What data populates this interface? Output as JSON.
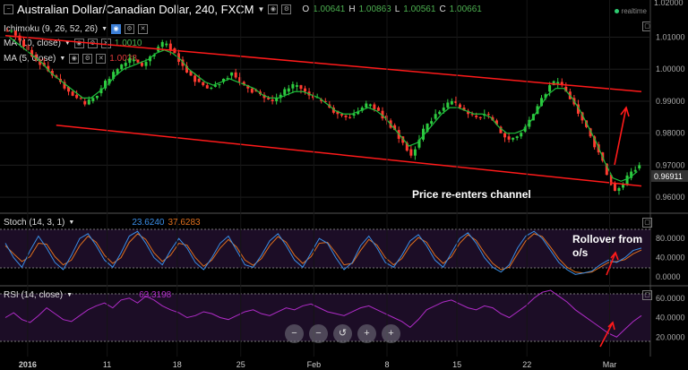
{
  "header": {
    "symbol": "Australian Dollar/Canadian Dollar, 240, FXCM",
    "o_label": "O",
    "o_value": "1.00641",
    "h_label": "H",
    "h_value": "1.00863",
    "l_label": "L",
    "l_value": "1.00561",
    "c_label": "C",
    "c_value": "1.00661",
    "realtime": "realtime"
  },
  "indicators": {
    "ichimoku": "Ichimoku (9, 26, 52, 26)",
    "ma10": "MA (10, close)",
    "ma10_value": "1.0010",
    "ma5": "MA (5, close)",
    "ma5_value": "1.0038",
    "stoch": "Stoch (14, 3, 1)",
    "stoch_k": "23.6240",
    "stoch_d": "37.6283",
    "rsi": "RSI (14, close)",
    "rsi_value": "63.3198"
  },
  "annotations": {
    "channel": "Price re-enters channel",
    "rollover_line1": "Rollover from",
    "rollover_line2": "o/s"
  },
  "colors": {
    "up_candle": "#2ecc40",
    "down_candle": "#ff3b30",
    "trend": "#ff1a1a",
    "ma_green": "#1fbf3c",
    "stoch_k": "#3a8ee6",
    "stoch_d": "#e0701e",
    "rsi": "#b02cc8",
    "panel_bg": "#1c0d26",
    "grid": "#333"
  },
  "zoom": [
    "−",
    "−",
    "↺",
    "+",
    "+"
  ],
  "chart_data": {
    "type": "candlestick",
    "price_axis": {
      "ticks": [
        "1.01000",
        "1.00000",
        "0.99000",
        "0.98000",
        "0.97000",
        "0.96000"
      ],
      "current": "0.96911",
      "top_partial": "1.02000"
    },
    "stoch_axis": {
      "ticks": [
        "80.0000",
        "40.0000",
        "0.0000"
      ],
      "bands": [
        80,
        20
      ]
    },
    "rsi_axis": {
      "ticks": [
        "60.0000",
        "40.0000",
        "20.0000"
      ],
      "bands": [
        70,
        30
      ]
    },
    "x_ticks": [
      "2016",
      "11",
      "18",
      "25",
      "Feb",
      "8",
      "15",
      "22",
      "Mar"
    ],
    "price_series": [
      1.012,
      1.009,
      1.006,
      1.003,
      1.001,
      0.998,
      0.996,
      0.993,
      0.991,
      0.989,
      0.991,
      0.994,
      0.997,
      1.0,
      1.002,
      1.003,
      1.001,
      1.004,
      1.007,
      1.008,
      1.005,
      1.001,
      0.998,
      0.996,
      0.994,
      0.995,
      0.997,
      0.999,
      0.996,
      0.994,
      0.993,
      0.991,
      0.99,
      0.992,
      0.994,
      0.995,
      0.993,
      0.991,
      0.99,
      0.988,
      0.986,
      0.985,
      0.986,
      0.988,
      0.989,
      0.987,
      0.984,
      0.981,
      0.977,
      0.973,
      0.978,
      0.983,
      0.986,
      0.988,
      0.99,
      0.988,
      0.986,
      0.985,
      0.986,
      0.984,
      0.98,
      0.978,
      0.979,
      0.982,
      0.986,
      0.991,
      0.995,
      0.996,
      0.993,
      0.989,
      0.984,
      0.979,
      0.974,
      0.967,
      0.962,
      0.964,
      0.968,
      0.97
    ],
    "ma_series": [
      1.01,
      1.008,
      1.006,
      1.004,
      1.002,
      0.999,
      0.997,
      0.995,
      0.993,
      0.991,
      0.991,
      0.993,
      0.995,
      0.998,
      1.0,
      1.001,
      1.002,
      1.003,
      1.005,
      1.006,
      1.005,
      1.003,
      1.0,
      0.998,
      0.996,
      0.995,
      0.996,
      0.997,
      0.996,
      0.995,
      0.994,
      0.992,
      0.991,
      0.991,
      0.992,
      0.993,
      0.993,
      0.992,
      0.991,
      0.989,
      0.987,
      0.986,
      0.986,
      0.987,
      0.988,
      0.987,
      0.985,
      0.982,
      0.979,
      0.976,
      0.977,
      0.98,
      0.983,
      0.986,
      0.988,
      0.988,
      0.987,
      0.986,
      0.986,
      0.985,
      0.982,
      0.98,
      0.98,
      0.981,
      0.984,
      0.988,
      0.992,
      0.994,
      0.994,
      0.991,
      0.987,
      0.982,
      0.977,
      0.971,
      0.966,
      0.965,
      0.966,
      0.968
    ],
    "trend_upper": {
      "from": [
        0.0,
        1.0105
      ],
      "to": [
        1.0,
        0.993
      ]
    },
    "trend_lower": {
      "from": [
        0.08,
        0.9825
      ],
      "to": [
        1.0,
        0.9635
      ]
    },
    "stoch_k": [
      70,
      40,
      20,
      55,
      85,
      60,
      30,
      15,
      45,
      80,
      90,
      65,
      35,
      20,
      50,
      85,
      95,
      70,
      40,
      25,
      55,
      80,
      60,
      30,
      15,
      40,
      70,
      85,
      55,
      25,
      20,
      45,
      75,
      90,
      65,
      35,
      20,
      50,
      80,
      70,
      40,
      15,
      30,
      65,
      85,
      60,
      30,
      20,
      45,
      75,
      88,
      65,
      35,
      20,
      50,
      80,
      92,
      70,
      40,
      20,
      10,
      25,
      60,
      85,
      95,
      80,
      55,
      30,
      15,
      5,
      8,
      12,
      25,
      35,
      30,
      40,
      55,
      60
    ],
    "stoch_d": [
      65,
      48,
      32,
      42,
      70,
      68,
      42,
      25,
      35,
      65,
      85,
      72,
      45,
      28,
      40,
      72,
      90,
      78,
      50,
      32,
      45,
      70,
      66,
      40,
      22,
      35,
      60,
      78,
      62,
      35,
      24,
      38,
      65,
      84,
      72,
      45,
      28,
      42,
      70,
      72,
      50,
      25,
      28,
      55,
      78,
      66,
      40,
      25,
      38,
      65,
      82,
      72,
      45,
      28,
      42,
      70,
      88,
      76,
      50,
      28,
      15,
      20,
      48,
      75,
      90,
      84,
      62,
      38,
      20,
      10,
      8,
      10,
      20,
      30,
      32,
      36,
      48,
      56
    ],
    "rsi": [
      40,
      45,
      38,
      35,
      42,
      50,
      44,
      38,
      36,
      42,
      48,
      52,
      55,
      50,
      58,
      60,
      55,
      62,
      58,
      52,
      48,
      45,
      40,
      42,
      46,
      44,
      40,
      38,
      42,
      46,
      48,
      44,
      42,
      46,
      50,
      48,
      52,
      54,
      50,
      46,
      44,
      42,
      46,
      50,
      52,
      48,
      44,
      40,
      36,
      30,
      38,
      48,
      52,
      56,
      58,
      54,
      50,
      48,
      52,
      50,
      44,
      40,
      46,
      52,
      60,
      66,
      68,
      62,
      56,
      48,
      42,
      36,
      30,
      24,
      20,
      28,
      36,
      42
    ]
  }
}
